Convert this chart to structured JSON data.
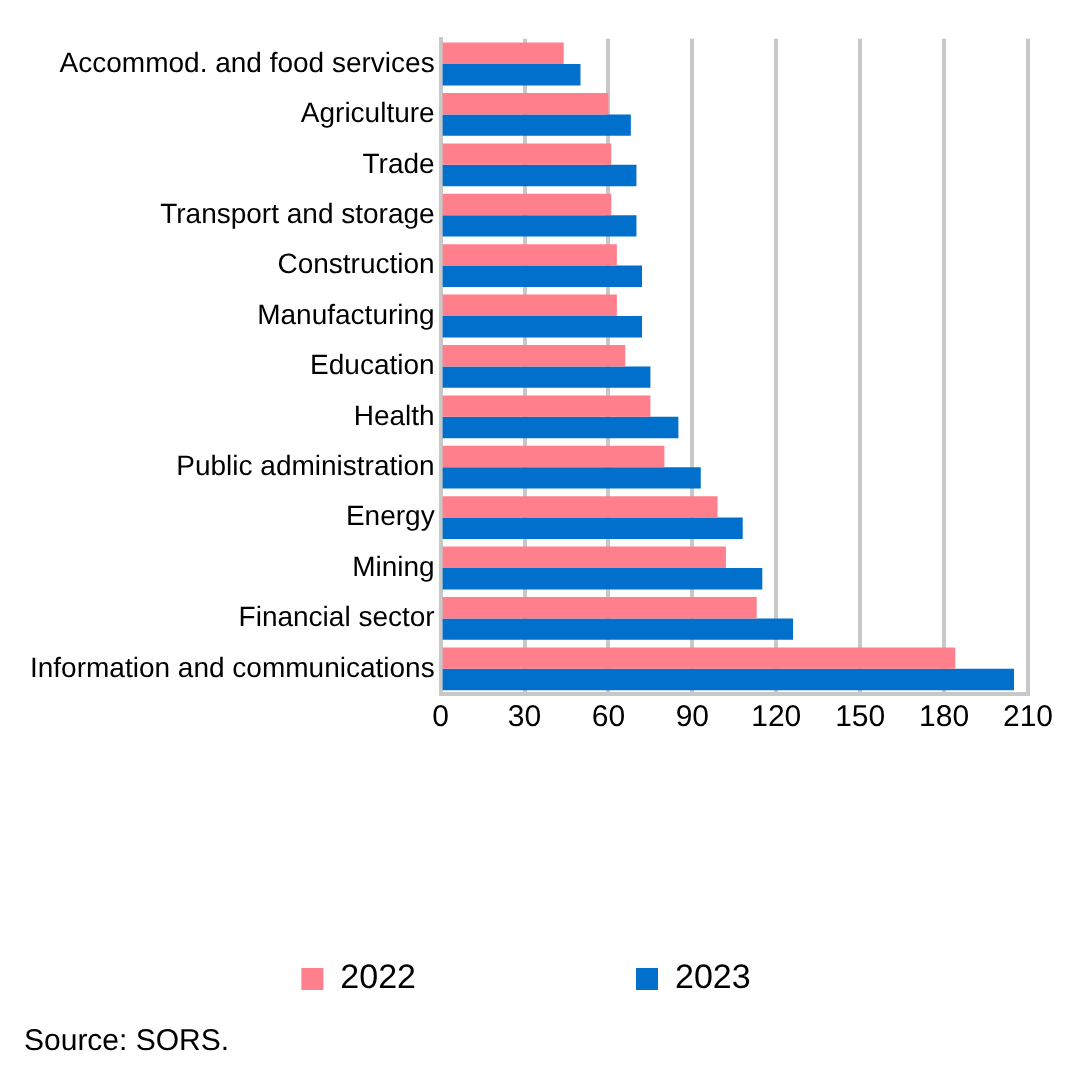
{
  "chart_data": {
    "type": "bar",
    "orientation": "horizontal",
    "categories": [
      "Accommod. and food services",
      "Agriculture",
      "Trade",
      "Transport and storage",
      "Construction",
      "Manufacturing",
      "Education",
      "Health",
      "Public administration",
      "Energy",
      "Mining",
      "Financial sector",
      "Information and communications"
    ],
    "series": [
      {
        "name": "2022",
        "color": "#ff7f8c",
        "values": [
          44,
          60,
          61,
          61,
          63,
          63,
          66,
          75,
          80,
          99,
          102,
          113,
          184
        ]
      },
      {
        "name": "2023",
        "color": "#0070cc",
        "values": [
          50,
          68,
          70,
          70,
          72,
          72,
          75,
          85,
          93,
          108,
          115,
          126,
          205
        ]
      }
    ],
    "xlim": [
      0,
      210
    ],
    "xticks": [
      0,
      30,
      60,
      90,
      120,
      150,
      180,
      210
    ],
    "grid": "x",
    "legend": "bottom",
    "annotations": [
      "Source: SORS."
    ]
  }
}
